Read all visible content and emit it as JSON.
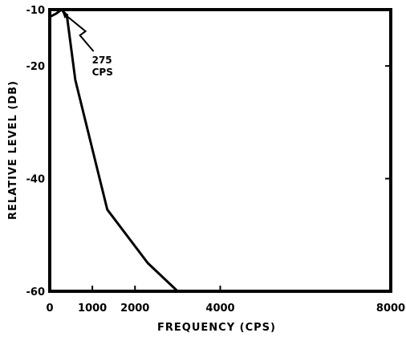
{
  "chart_data": {
    "type": "line",
    "title": "",
    "xlabel": "FREQUENCY (CPS)",
    "ylabel": "RELATIVE LEVEL (DB)",
    "xlim": [
      0,
      8000
    ],
    "ylim": [
      -60,
      -10
    ],
    "x_ticks": [
      {
        "value": 0,
        "label": "0"
      },
      {
        "value": 1000,
        "label": "1000"
      },
      {
        "value": 2000,
        "label": "2000"
      },
      {
        "value": 4000,
        "label": "4000"
      },
      {
        "value": 8000,
        "label": "8000"
      }
    ],
    "y_ticks": [
      {
        "value": -10,
        "label": "-10"
      },
      {
        "value": -20,
        "label": "-20"
      },
      {
        "value": -40,
        "label": "-40"
      },
      {
        "value": -60,
        "label": "-60"
      }
    ],
    "grid": false,
    "legend": "none",
    "series": [
      {
        "x": [
          0,
          150,
          275,
          400,
          600,
          1350,
          2300,
          3000
        ],
        "y": [
          -11.3,
          -10.7,
          -10,
          -11,
          -22.5,
          -45.5,
          -55,
          -60
        ]
      }
    ],
    "annotations": [
      {
        "lines": [
          "275",
          "CPS"
        ],
        "x": 275,
        "y": -10
      }
    ]
  }
}
